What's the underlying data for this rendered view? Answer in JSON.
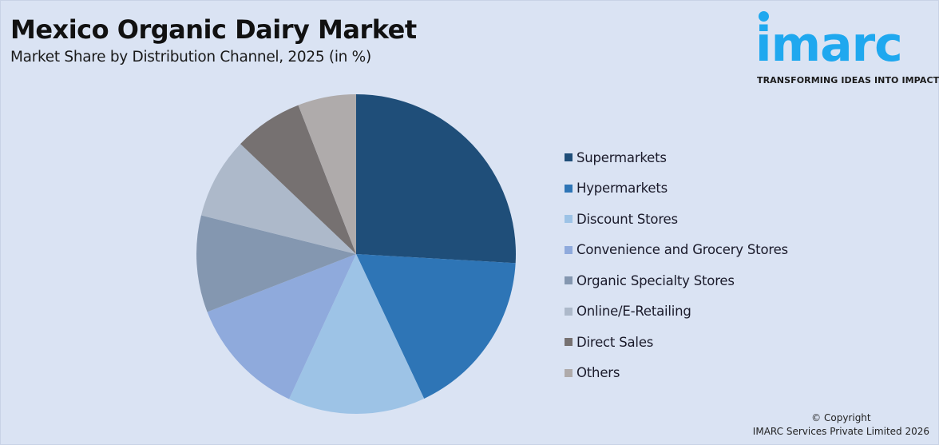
{
  "header": {
    "title": "Mexico Organic Dairy Market",
    "subtitle": "Market Share by Distribution Channel, 2025 (in %)"
  },
  "logo": {
    "wordmark": "imarc",
    "tagline": "TRANSFORMING IDEAS INTO IMPACT",
    "color": "#1fa8ef"
  },
  "footer": {
    "copyright_line1": "© Copyright",
    "copyright_line2": "IMARC Services Private Limited 2026"
  },
  "chart_data": {
    "type": "pie",
    "title": "Mexico Organic Dairy Market",
    "subtitle": "Market Share by Distribution Channel, 2025 (in %)",
    "legend_position": "right",
    "start_angle": "12 o'clock, clockwise",
    "categories": [
      "Supermarkets",
      "Hypermarkets",
      "Discount Stores",
      "Convenience and Grocery Stores",
      "Organic Specialty Stores",
      "Online/E-Retailing",
      "Direct Sales",
      "Others"
    ],
    "values": [
      25.9,
      17.1,
      13.9,
      12.2,
      9.8,
      8.2,
      7.0,
      5.9
    ],
    "colors": [
      "#1f4e79",
      "#2e75b6",
      "#9dc3e6",
      "#8faadc",
      "#8497b0",
      "#adb9ca",
      "#767171",
      "#afabab"
    ]
  }
}
